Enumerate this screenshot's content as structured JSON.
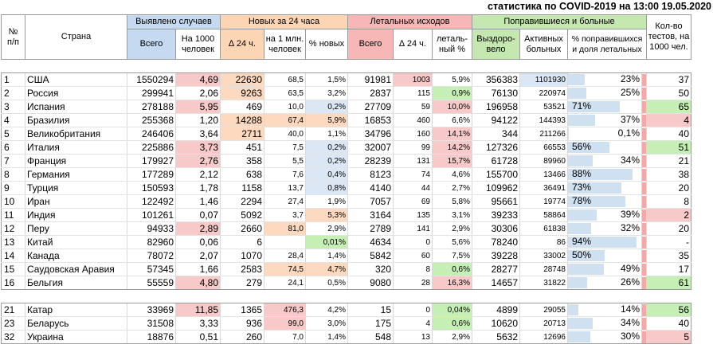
{
  "title": "статистика по COVID-2019 на 13:00 19.05.2020",
  "colors": {
    "hdr_blue": "#c5d9f1",
    "hdr_orange": "#fcd5b4",
    "hdr_red": "#f7b7b7",
    "hdr_green": "#c5e8b0",
    "cell_red": "#f8c9c9",
    "cell_orange": "#fcd9bf",
    "cell_green": "#c6efb5",
    "cell_blue": "#dbe7f5",
    "bar_blue": "#cfe0f1",
    "tip_red": "#f2a9a9"
  },
  "headers": {
    "no": "№\nп/п",
    "country": "Страна",
    "detected": "Выявлено случаев",
    "new24": "Новых за 24 часа",
    "deaths": "Летальных исходов",
    "recovered_sick": "Поправившиеся и больные",
    "tests": "Кол-во\nтестов, на\n1000 чел.",
    "total": "Всего",
    "per1000": "На 1000\nчеловек",
    "delta24": "∆ 24 ч.",
    "per1m": "на 1 млн.\nчеловек",
    "pct_new": "% новых",
    "deaths_total": "Всего",
    "deaths_delta": "∆ 24 ч.",
    "lethal_pct": "леталь-\nный %",
    "recovered": "Выздоро-\nвело",
    "active": "Активных\nбольных",
    "rec_share": "% поправившихся\nи доля летальных"
  },
  "rows": [
    {
      "no": "1",
      "country": "США",
      "total": "1550294",
      "per1000": "4,69",
      "new": "22630",
      "per1m": "68,5",
      "pct_new": "1,5%",
      "deaths": "91981",
      "deaths_delta": "1003",
      "lethal": "5,9%",
      "recovered": "356383",
      "active": "1101930",
      "share": "23%",
      "share_pos": "right",
      "share_val": 23,
      "tests": "37"
    },
    {
      "no": "2",
      "country": "Россия",
      "total": "299941",
      "per1000": "2,06",
      "new": "9263",
      "per1m": "63,5",
      "pct_new": "3,2%",
      "deaths": "2837",
      "deaths_delta": "115",
      "lethal": "0,9%",
      "recovered": "76130",
      "active": "220974",
      "share": "25%",
      "share_pos": "right",
      "share_val": 25,
      "tests": "50"
    },
    {
      "no": "3",
      "country": "Испания",
      "total": "278188",
      "per1000": "5,95",
      "new": "469",
      "per1m": "10,0",
      "pct_new": "0,2%",
      "deaths": "27709",
      "deaths_delta": "59",
      "lethal": "10,0%",
      "recovered": "196958",
      "active": "53521",
      "share": "71%",
      "share_pos": "left",
      "share_val": 71,
      "tests": "65"
    },
    {
      "no": "4",
      "country": "Бразилия",
      "total": "255368",
      "per1000": "1,20",
      "new": "14288",
      "per1m": "67,4",
      "pct_new": "5,9%",
      "deaths": "16853",
      "deaths_delta": "460",
      "lethal": "6,6%",
      "recovered": "94122",
      "active": "144393",
      "share": "37%",
      "share_pos": "right",
      "share_val": 37,
      "tests": "4"
    },
    {
      "no": "5",
      "country": "Великобритания",
      "total": "246406",
      "per1000": "3,64",
      "new": "2711",
      "per1m": "40,0",
      "pct_new": "1,1%",
      "deaths": "34796",
      "deaths_delta": "160",
      "lethal": "14,1%",
      "recovered": "344",
      "active": "211266",
      "share": "0,1%",
      "share_pos": "right",
      "share_val": 0.1,
      "tests": "40"
    },
    {
      "no": "6",
      "country": "Италия",
      "total": "225886",
      "per1000": "3,73",
      "new": "451",
      "per1m": "7,5",
      "pct_new": "0,2%",
      "deaths": "32007",
      "deaths_delta": "99",
      "lethal": "14,2%",
      "recovered": "127326",
      "active": "66553",
      "share": "56%",
      "share_pos": "left",
      "share_val": 56,
      "tests": "51"
    },
    {
      "no": "7",
      "country": "Франция",
      "total": "179927",
      "per1000": "2,76",
      "new": "358",
      "per1m": "5,5",
      "pct_new": "0,2%",
      "deaths": "28239",
      "deaths_delta": "131",
      "lethal": "15,7%",
      "recovered": "61728",
      "active": "89960",
      "share": "34%",
      "share_pos": "right",
      "share_val": 34,
      "tests": "21"
    },
    {
      "no": "8",
      "country": "Германия",
      "total": "177289",
      "per1000": "2,12",
      "new": "638",
      "per1m": "7,6",
      "pct_new": "0,4%",
      "deaths": "8123",
      "deaths_delta": "74",
      "lethal": "4,6%",
      "recovered": "155700",
      "active": "13466",
      "share": "88%",
      "share_pos": "left",
      "share_val": 88,
      "tests": "38"
    },
    {
      "no": "9",
      "country": "Турция",
      "total": "150593",
      "per1000": "1,78",
      "new": "1158",
      "per1m": "13,7",
      "pct_new": "0,8%",
      "deaths": "4140",
      "deaths_delta": "44",
      "lethal": "2,7%",
      "recovered": "109962",
      "active": "36491",
      "share": "73%",
      "share_pos": "left",
      "share_val": 73,
      "tests": "20"
    },
    {
      "no": "10",
      "country": "Иран",
      "total": "122492",
      "per1000": "1,46",
      "new": "2294",
      "per1m": "27,4",
      "pct_new": "1,9%",
      "deaths": "7057",
      "deaths_delta": "69",
      "lethal": "5,8%",
      "recovered": "95661",
      "active": "19774",
      "share": "78%",
      "share_pos": "left",
      "share_val": 78,
      "tests": "8"
    },
    {
      "no": "11",
      "country": "Индия",
      "total": "101261",
      "per1000": "0,07",
      "new": "5092",
      "per1m": "3,7",
      "pct_new": "5,3%",
      "deaths": "3164",
      "deaths_delta": "135",
      "lethal": "3,1%",
      "recovered": "39233",
      "active": "58864",
      "share": "39%",
      "share_pos": "right",
      "share_val": 39,
      "tests": "2"
    },
    {
      "no": "12",
      "country": "Перу",
      "total": "94933",
      "per1000": "2,89",
      "new": "2660",
      "per1m": "81,0",
      "pct_new": "2,9%",
      "deaths": "2789",
      "deaths_delta": "141",
      "lethal": "2,9%",
      "recovered": "30306",
      "active": "61838",
      "share": "32%",
      "share_pos": "right",
      "share_val": 32,
      "tests": "20"
    },
    {
      "no": "13",
      "country": "Китай",
      "total": "82960",
      "per1000": "0,06",
      "new": "6",
      "per1m": "",
      "pct_new": "0,01%",
      "deaths": "4634",
      "deaths_delta": "0",
      "lethal": "5,6%",
      "recovered": "78240",
      "active": "86",
      "share": "94%",
      "share_pos": "left",
      "share_val": 94,
      "tests": "-"
    },
    {
      "no": "14",
      "country": "Канада",
      "total": "78072",
      "per1000": "2,07",
      "new": "1070",
      "per1m": "28,4",
      "pct_new": "1,4%",
      "deaths": "5842",
      "deaths_delta": "60",
      "lethal": "7,5%",
      "recovered": "39228",
      "active": "33002",
      "share": "50%",
      "share_pos": "left",
      "share_val": 50,
      "tests": "35"
    },
    {
      "no": "15",
      "country": "Саудовская Аравия",
      "total": "57345",
      "per1000": "1,66",
      "new": "2583",
      "per1m": "74,5",
      "pct_new": "4,7%",
      "deaths": "320",
      "deaths_delta": "8",
      "lethal": "0,6%",
      "recovered": "28277",
      "active": "28748",
      "share": "49%",
      "share_pos": "right",
      "share_val": 49,
      "tests": "17"
    },
    {
      "no": "16",
      "country": "Бельгия",
      "total": "55559",
      "per1000": "4,80",
      "new": "279",
      "per1m": "24,1",
      "pct_new": "0,5%",
      "deaths": "9080",
      "deaths_delta": "28",
      "lethal": "16,3%",
      "recovered": "14657",
      "active": "31822",
      "share": "26%",
      "share_pos": "right",
      "share_val": 26,
      "tests": "61"
    }
  ],
  "rows2": [
    {
      "no": "21",
      "country": "Катар",
      "total": "33969",
      "per1000": "11,85",
      "new": "1365",
      "per1m": "476,3",
      "pct_new": "4,2%",
      "deaths": "15",
      "deaths_delta": "0",
      "lethal": "0,04%",
      "recovered": "4899",
      "active": "29055",
      "share": "14%",
      "share_pos": "right",
      "share_val": 14,
      "tests": "56"
    },
    {
      "no": "23",
      "country": "Беларусь",
      "total": "31508",
      "per1000": "3,33",
      "new": "936",
      "per1m": "99,0",
      "pct_new": "3,0%",
      "deaths": "175",
      "deaths_delta": "4",
      "lethal": "0,6%",
      "recovered": "10620",
      "active": "20713",
      "share": "34%",
      "share_pos": "right",
      "share_val": 34,
      "tests": "40"
    },
    {
      "no": "32",
      "country": "Украина",
      "total": "18876",
      "per1000": "0,51",
      "new": "260",
      "per1m": "7,0",
      "pct_new": "1,4%",
      "deaths": "548",
      "deaths_delta": "13",
      "lethal": "2,9%",
      "recovered": "5632",
      "active": "12696",
      "share": "30%",
      "share_pos": "right",
      "share_val": 30,
      "tests": "5"
    }
  ]
}
